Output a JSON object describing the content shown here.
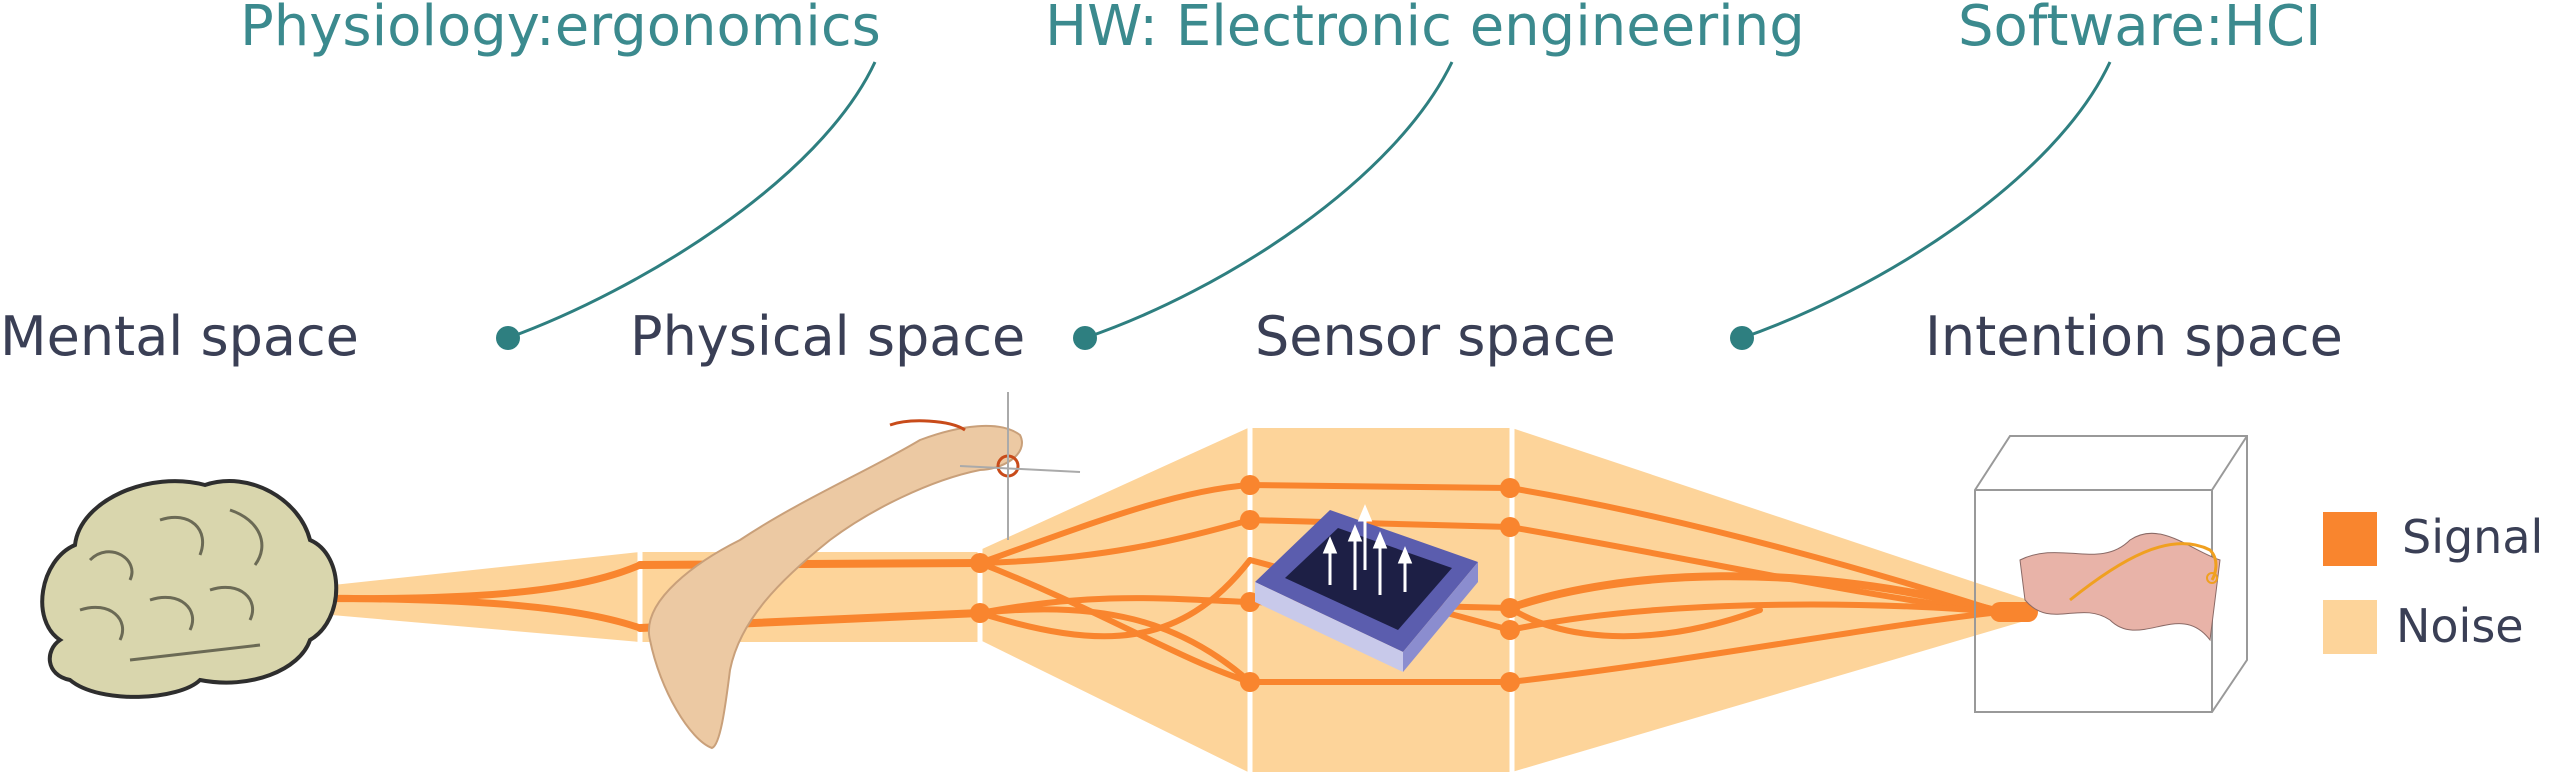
{
  "disciplines": [
    {
      "label": "Physiology:ergonomics"
    },
    {
      "label": "HW: Electronic engineering"
    },
    {
      "label": "Software:HCI"
    }
  ],
  "spaces": [
    {
      "label": "Mental space"
    },
    {
      "label": "Physical space"
    },
    {
      "label": "Sensor space"
    },
    {
      "label": "Intention space"
    }
  ],
  "legend": {
    "signal": "Signal",
    "noise": "Noise"
  },
  "colors": {
    "discipline_text": "#3b8a8e",
    "discipline_dot": "#2e7f80",
    "space_text": "#3a3f55",
    "signal": "#f9852e",
    "noise": "#fdd49a",
    "brain": "#d9d6ad",
    "arm": "#ecc9a3",
    "sensor_frame": "#5b5dae",
    "sensor_inner": "#1d1f45"
  },
  "icons": {
    "brain": "brain-icon",
    "arm": "arm-icon",
    "sensor": "sensor-chip-icon",
    "intention_plot": "3d-surface-plot-icon"
  }
}
